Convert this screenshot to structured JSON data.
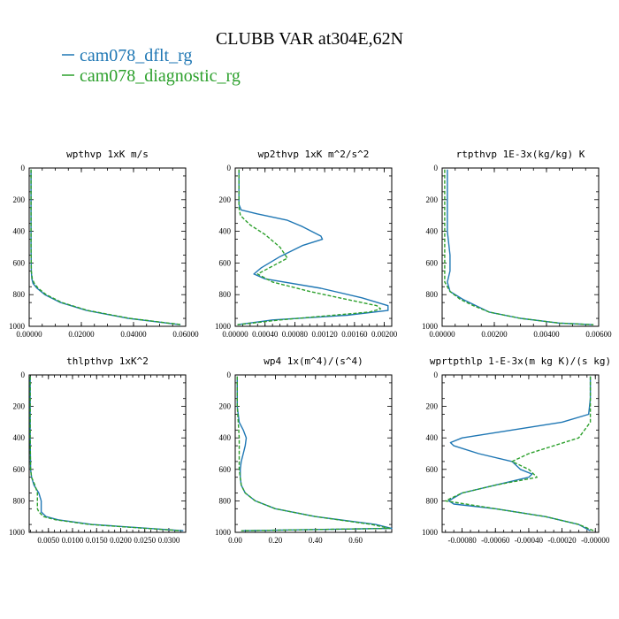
{
  "figure": {
    "title": "CLUBB VAR at304E,62N",
    "legend": [
      {
        "name": "cam078_dflt_rg",
        "color": "#1f77b4",
        "dash": "solid"
      },
      {
        "name": "cam078_diagnostic_rg",
        "color": "#2ca02c",
        "dash": "dashed"
      }
    ]
  },
  "chart_data": [
    {
      "type": "line",
      "title": "wpthvp  1xK m/s",
      "xlim": [
        0,
        0.06
      ],
      "xticks": [
        "0.00000",
        "0.02000",
        "0.04000",
        "0.06000"
      ],
      "ylim": [
        0,
        1000
      ],
      "yinverted": true,
      "yticks": [
        "0",
        "200",
        "400",
        "600",
        "800",
        "1000"
      ],
      "series": [
        {
          "name": "cam078_dflt_rg",
          "y": [
            10,
            100,
            300,
            500,
            650,
            700,
            730,
            760,
            800,
            850,
            900,
            950,
            990
          ],
          "x": [
            0.0007,
            0.0007,
            0.0007,
            0.0007,
            0.0008,
            0.001,
            0.0015,
            0.003,
            0.006,
            0.012,
            0.022,
            0.038,
            0.058
          ]
        },
        {
          "name": "cam078_diagnostic_rg",
          "y": [
            10,
            100,
            300,
            500,
            650,
            700,
            730,
            760,
            800,
            850,
            900,
            950,
            990
          ],
          "x": [
            0.0007,
            0.0007,
            0.0007,
            0.0007,
            0.0008,
            0.0012,
            0.002,
            0.0035,
            0.0065,
            0.0125,
            0.0225,
            0.0385,
            0.0585
          ]
        }
      ]
    },
    {
      "type": "line",
      "title": "wp2thvp  1xK m^2/s^2",
      "xlim": [
        0,
        0.0021
      ],
      "xticks": [
        "0.00000",
        "0.00040",
        "0.00080",
        "0.00120",
        "0.00160",
        "0.00200"
      ],
      "ylim": [
        0,
        1000
      ],
      "yinverted": true,
      "yticks": [
        "0",
        "200",
        "400",
        "600",
        "800",
        "1000"
      ],
      "series": [
        {
          "name": "cam078_dflt_rg",
          "y": [
            10,
            150,
            230,
            265,
            290,
            330,
            370,
            430,
            450,
            490,
            560,
            630,
            670,
            700,
            760,
            820,
            870,
            900,
            930,
            960,
            990
          ],
          "x": [
            5e-05,
            5e-05,
            5e-05,
            8e-05,
            0.0003,
            0.0007,
            0.0009,
            0.00115,
            0.00117,
            0.0009,
            0.0006,
            0.00035,
            0.00025,
            0.0004,
            0.00115,
            0.0017,
            0.00205,
            0.00205,
            0.0015,
            0.0005,
            3e-05
          ]
        },
        {
          "name": "cam078_diagnostic_rg",
          "y": [
            10,
            150,
            250,
            300,
            360,
            420,
            500,
            570,
            620,
            670,
            720,
            780,
            830,
            870,
            890,
            910,
            960,
            990
          ],
          "x": [
            5e-05,
            5e-05,
            5e-05,
            7e-05,
            0.0002,
            0.0004,
            0.0006,
            0.0007,
            0.0005,
            0.0003,
            0.0005,
            0.001,
            0.0015,
            0.0019,
            0.00195,
            0.0018,
            0.0006,
            3e-05
          ]
        }
      ]
    },
    {
      "type": "line",
      "title": "rtpthvp  1E-3x(kg/kg) K",
      "xlim": [
        0,
        0.006
      ],
      "xticks": [
        "0.00000",
        "0.00200",
        "0.00400",
        "0.00600"
      ],
      "ylim": [
        0,
        1000
      ],
      "yinverted": true,
      "yticks": [
        "0",
        "200",
        "400",
        "600",
        "800",
        "1000"
      ],
      "series": [
        {
          "name": "cam078_dflt_rg",
          "y": [
            10,
            200,
            400,
            550,
            650,
            720,
            780,
            830,
            870,
            910,
            950,
            980,
            990
          ],
          "x": [
            0.0002,
            0.0002,
            0.0002,
            0.0003,
            0.0003,
            0.0002,
            0.0003,
            0.0008,
            0.0013,
            0.0018,
            0.003,
            0.0045,
            0.0058
          ]
        },
        {
          "name": "cam078_diagnostic_rg",
          "y": [
            10,
            200,
            400,
            550,
            650,
            720,
            780,
            830,
            870,
            910,
            950,
            980,
            990
          ],
          "x": [
            0.0001,
            0.0001,
            0.0001,
            0.0001,
            0.0001,
            0.0001,
            0.0003,
            0.0007,
            0.0012,
            0.0018,
            0.003,
            0.0045,
            0.0058
          ]
        }
      ]
    },
    {
      "type": "line",
      "title": "thlpthvp  1xK^2",
      "xlim": [
        0.001,
        0.0335
      ],
      "xticks": [
        "0.0050",
        "0.0100",
        "0.0150",
        "0.0200",
        "0.0250",
        "0.0300"
      ],
      "ylim": [
        0,
        1000
      ],
      "yinverted": true,
      "yticks": [
        "0",
        "200",
        "400",
        "600",
        "800",
        "1000"
      ],
      "series": [
        {
          "name": "cam078_dflt_rg",
          "y": [
            10,
            200,
            400,
            600,
            650,
            700,
            750,
            800,
            850,
            870,
            900,
            920,
            950,
            990
          ],
          "x": [
            0.0012,
            0.0012,
            0.0012,
            0.0013,
            0.0015,
            0.002,
            0.003,
            0.0035,
            0.0035,
            0.0035,
            0.0045,
            0.007,
            0.014,
            0.033
          ]
        },
        {
          "name": "cam078_diagnostic_rg",
          "y": [
            10,
            200,
            400,
            600,
            650,
            700,
            750,
            800,
            850,
            870,
            900,
            920,
            950,
            990
          ],
          "x": [
            0.0012,
            0.0012,
            0.0012,
            0.0013,
            0.0015,
            0.0022,
            0.0027,
            0.0027,
            0.0027,
            0.003,
            0.004,
            0.0065,
            0.0135,
            0.0325
          ]
        }
      ]
    },
    {
      "type": "line",
      "title": "wp4  1x(m^4)/(s^4)",
      "xlim": [
        0,
        0.78
      ],
      "xticks": [
        "0.00",
        "0.20",
        "0.40",
        "0.60"
      ],
      "ylim": [
        0,
        1000
      ],
      "yinverted": true,
      "yticks": [
        "0",
        "200",
        "400",
        "600",
        "800",
        "1000"
      ],
      "series": [
        {
          "name": "cam078_dflt_rg",
          "y": [
            10,
            200,
            300,
            350,
            400,
            450,
            500,
            550,
            600,
            650,
            700,
            750,
            800,
            850,
            900,
            950,
            975,
            990
          ],
          "x": [
            0.01,
            0.01,
            0.02,
            0.04,
            0.055,
            0.05,
            0.04,
            0.03,
            0.025,
            0.025,
            0.03,
            0.05,
            0.1,
            0.2,
            0.4,
            0.7,
            0.78,
            0.03
          ]
        },
        {
          "name": "cam078_diagnostic_rg",
          "y": [
            10,
            200,
            300,
            400,
            500,
            600,
            700,
            750,
            800,
            850,
            900,
            950,
            975,
            990
          ],
          "x": [
            0.01,
            0.01,
            0.015,
            0.02,
            0.02,
            0.02,
            0.03,
            0.05,
            0.1,
            0.2,
            0.4,
            0.68,
            0.77,
            0.03
          ]
        }
      ]
    },
    {
      "type": "line",
      "title": "wprtpthlp  1-E-3x(m kg K)/(s kg)",
      "xlim": [
        -0.00092,
        2e-05
      ],
      "xticks": [
        "-0.00080",
        "-0.00060",
        "-0.00040",
        "-0.00020",
        "-0.00000"
      ],
      "ylim": [
        0,
        1000
      ],
      "yinverted": true,
      "yticks": [
        "0",
        "200",
        "400",
        "600",
        "800",
        "1000"
      ],
      "series": [
        {
          "name": "cam078_dflt_rg",
          "y": [
            10,
            150,
            250,
            300,
            350,
            400,
            430,
            450,
            500,
            550,
            600,
            630,
            650,
            700,
            750,
            800,
            820,
            850,
            900,
            950,
            990
          ],
          "x": [
            -3e-05,
            -3e-05,
            -4e-05,
            -0.0002,
            -0.0005,
            -0.0008,
            -0.00087,
            -0.00085,
            -0.0007,
            -0.0005,
            -0.00045,
            -0.00038,
            -0.0004,
            -0.0006,
            -0.0008,
            -0.00088,
            -0.00085,
            -0.0006,
            -0.0003,
            -0.0001,
            -3e-05
          ]
        },
        {
          "name": "cam078_diagnostic_rg",
          "y": [
            10,
            150,
            250,
            300,
            400,
            500,
            550,
            600,
            650,
            700,
            750,
            800,
            850,
            900,
            950,
            990
          ],
          "x": [
            -3e-05,
            -3e-05,
            -3e-05,
            -3e-05,
            -0.0001,
            -0.0004,
            -0.0005,
            -0.0004,
            -0.00035,
            -0.0006,
            -0.0008,
            -0.0009,
            -0.0006,
            -0.0003,
            -0.0001,
            -1e-05
          ]
        }
      ]
    }
  ]
}
